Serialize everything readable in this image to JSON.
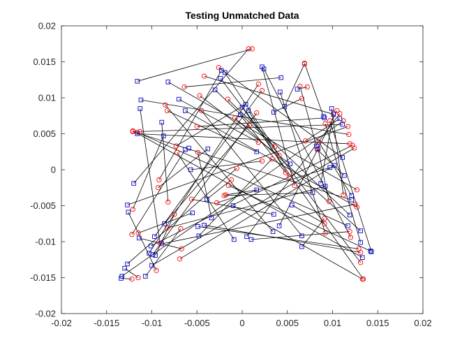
{
  "chart_data": {
    "type": "scatter",
    "title": "Testing Unmatched Data",
    "xlabel": "",
    "ylabel": "",
    "xlim": [
      -0.02,
      0.02
    ],
    "ylim": [
      -0.02,
      0.02
    ],
    "grid": false,
    "legend": "none",
    "x_ticks": [
      -0.02,
      -0.015,
      -0.01,
      -0.005,
      0,
      0.005,
      0.01,
      0.015,
      0.02
    ],
    "x_tick_labels": [
      "-0.02",
      "-0.015",
      "-0.01",
      "-0.005",
      "0",
      "0.005",
      "0.01",
      "0.015",
      "0.02"
    ],
    "y_ticks": [
      -0.02,
      -0.015,
      -0.01,
      -0.005,
      0,
      0.005,
      0.01,
      0.015,
      0.02
    ],
    "y_tick_labels": [
      "-0.02",
      "-0.015",
      "-0.01",
      "-0.005",
      "0",
      "0.005",
      "0.01",
      "0.015",
      "0.02"
    ],
    "series": [
      {
        "marker": "circle",
        "color": "#ff0000",
        "x": [
          -0.0122,
          -0.0115,
          -0.0095,
          -0.0091,
          -0.0067,
          -0.0068,
          -0.0075,
          -0.0082,
          -0.0121,
          -0.0122,
          -0.0115,
          -0.0093,
          -0.0092,
          -0.0072,
          -0.0073,
          -0.0083,
          -0.0085,
          -0.0064,
          -0.0047,
          -0.0045,
          -0.005,
          -0.0042,
          -0.0026,
          -0.0016,
          -0.0008,
          -0.0015,
          -0.0028,
          -0.002,
          -0.0018,
          -0.0012,
          -0.0006,
          0.0007,
          0.0011,
          0.0018,
          0.0022,
          0.0016,
          0.0008,
          0.0018,
          0.0022,
          0.0033,
          0.0036,
          0.0041,
          0.0048,
          0.0052,
          0.0058,
          0.0066,
          0.0069,
          0.0072,
          0.0064,
          0.0069,
          0.007,
          0.0083,
          0.0085,
          0.0092,
          0.0097,
          0.0101,
          0.0105,
          0.0108,
          0.0112,
          0.0117,
          0.0118,
          0.0119,
          0.0122,
          0.0124,
          0.0125,
          0.0127,
          0.0127,
          0.0129,
          0.0131,
          0.0131,
          0.0133,
          0.0134,
          0.0119,
          0.012,
          0.0092,
          0.0091,
          0.0091,
          0.0096,
          0.0112,
          -0.0113,
          -0.0116,
          -0.0121,
          -0.0121,
          -0.0069,
          -0.0083,
          -0.0056,
          -0.0049
        ],
        "y": [
          -0.0152,
          -0.015,
          -0.014,
          -0.0102,
          -0.011,
          -0.0082,
          -0.0062,
          -0.0045,
          -0.0055,
          -0.009,
          -0.0088,
          -0.0025,
          -0.0014,
          0.0024,
          0.0033,
          0.0082,
          0.009,
          0.0115,
          0.0103,
          0.0082,
          0.006,
          0.013,
          0.0142,
          0.0098,
          0.0072,
          -0.0022,
          -0.0046,
          -0.0036,
          -0.0035,
          -0.0014,
          0.0002,
          0.0168,
          0.0168,
          0.0119,
          0.011,
          0.0079,
          0.0062,
          0.0038,
          0.0012,
          0.0015,
          0.0032,
          0.002,
          -0.0004,
          -0.001,
          -0.0022,
          0.0099,
          0.0147,
          0.0115,
          0.0116,
          0.0148,
          0.004,
          0.0028,
          0.0038,
          0.0064,
          0.0068,
          0.0078,
          0.0082,
          0.0078,
          0.0068,
          0.006,
          0.0049,
          0.0036,
          0.0034,
          0.003,
          -0.0048,
          -0.0028,
          -0.0052,
          -0.011,
          -0.0115,
          -0.0129,
          -0.0152,
          -0.0152,
          -0.0086,
          -0.0094,
          -0.0088,
          -0.0075,
          -0.0068,
          -0.0044,
          -0.0035,
          0.0053,
          0.0052,
          0.0053,
          0.0054,
          -0.0124,
          -0.0081,
          -0.0041,
          0.0024
        ]
      },
      {
        "marker": "square",
        "color": "#0000cc",
        "x": [
          -0.0134,
          -0.0133,
          -0.013,
          -0.0127,
          -0.0126,
          -0.0127,
          -0.012,
          -0.0113,
          -0.0112,
          -0.0116,
          -0.0116,
          -0.0114,
          -0.0103,
          -0.0107,
          -0.0101,
          -0.0097,
          -0.0096,
          -0.01,
          -0.0099,
          -0.0089,
          -0.0089,
          -0.0086,
          -0.0087,
          -0.0082,
          -0.007,
          -0.0063,
          -0.0063,
          -0.0057,
          -0.0049,
          -0.0055,
          -0.0048,
          -0.0042,
          -0.0038,
          -0.003,
          -0.0024,
          -0.0023,
          -0.0019,
          -0.001,
          -0.0009,
          -0.0002,
          0.0,
          0.0004,
          0.0007,
          0.001,
          0.0016,
          0.0022,
          0.0024,
          0.0034,
          0.0035,
          0.0042,
          0.0043,
          0.0047,
          0.0055,
          0.0053,
          0.0061,
          0.0066,
          0.0066,
          0.0082,
          0.0084,
          0.0091,
          0.009,
          0.0099,
          0.0101,
          0.0108,
          0.0111,
          0.0111,
          0.0113,
          0.0117,
          0.0119,
          0.0121,
          0.0121,
          0.0131,
          0.0131,
          0.0133,
          0.0142,
          0.0143,
          0.0102,
          0.0097,
          0.0087,
          0.0092,
          0.0078,
          0.0041,
          0.0035,
          0.0016,
          0.0005,
          -0.0034,
          -0.0039,
          -0.0059
        ],
        "y": [
          -0.0151,
          -0.0148,
          -0.0137,
          -0.0131,
          -0.0059,
          -0.0049,
          -0.0019,
          0.0085,
          0.0097,
          0.0123,
          0.005,
          -0.0095,
          -0.0116,
          -0.0148,
          -0.0106,
          -0.0093,
          -0.0119,
          -0.0133,
          -0.0118,
          0.0066,
          -0.0103,
          -0.0075,
          0.0047,
          0.0122,
          0.0098,
          0.0082,
          0.0028,
          0.0,
          -0.0079,
          -0.006,
          -0.0092,
          -0.0077,
          0.0029,
          0.0111,
          0.0127,
          0.0138,
          0.0135,
          -0.005,
          -0.0097,
          0.0076,
          0.0087,
          0.0091,
          0.0082,
          -0.0097,
          0.0025,
          0.0143,
          0.014,
          -0.0086,
          0.008,
          0.0108,
          0.0128,
          0.0088,
          -0.0049,
          0.0008,
          0.0112,
          -0.0107,
          -0.0092,
          0.0033,
          0.0029,
          0.0072,
          0.0074,
          0.0085,
          0.0077,
          0.0071,
          0.0063,
          0.0017,
          -0.0008,
          -0.0078,
          -0.0063,
          -0.0036,
          -0.0042,
          -0.0085,
          -0.0101,
          -0.0122,
          -0.0113,
          -0.0114,
          0.0006,
          0.0003,
          -0.0019,
          -0.0023,
          -0.0032,
          -0.0078,
          -0.0062,
          -0.0028,
          -0.0093,
          -0.0067,
          -0.0041,
          0.003
        ]
      }
    ],
    "connecting_lines": {
      "color": "#000000",
      "pairs": [
        [
          0,
          0
        ],
        [
          1,
          2
        ],
        [
          2,
          4
        ],
        [
          3,
          7
        ],
        [
          4,
          11
        ],
        [
          5,
          13
        ],
        [
          6,
          16
        ],
        [
          7,
          19
        ],
        [
          8,
          22
        ],
        [
          9,
          26
        ],
        [
          10,
          29
        ],
        [
          11,
          32
        ],
        [
          12,
          35
        ],
        [
          13,
          38
        ],
        [
          14,
          41
        ],
        [
          15,
          44
        ],
        [
          16,
          47
        ],
        [
          17,
          50
        ],
        [
          18,
          53
        ],
        [
          19,
          56
        ],
        [
          20,
          59
        ],
        [
          21,
          62
        ],
        [
          22,
          65
        ],
        [
          23,
          68
        ],
        [
          24,
          71
        ],
        [
          25,
          74
        ],
        [
          26,
          77
        ],
        [
          27,
          80
        ],
        [
          28,
          83
        ],
        [
          29,
          86
        ],
        [
          30,
          3
        ],
        [
          31,
          6
        ],
        [
          32,
          9
        ],
        [
          33,
          12
        ],
        [
          34,
          15
        ],
        [
          35,
          18
        ],
        [
          36,
          21
        ],
        [
          37,
          24
        ],
        [
          38,
          27
        ],
        [
          39,
          30
        ],
        [
          40,
          33
        ],
        [
          41,
          36
        ],
        [
          42,
          39
        ],
        [
          43,
          42
        ],
        [
          44,
          45
        ],
        [
          45,
          48
        ],
        [
          46,
          51
        ],
        [
          47,
          54
        ],
        [
          48,
          57
        ],
        [
          49,
          60
        ],
        [
          50,
          63
        ],
        [
          51,
          66
        ],
        [
          52,
          69
        ],
        [
          53,
          72
        ],
        [
          54,
          75
        ],
        [
          55,
          78
        ],
        [
          56,
          81
        ],
        [
          57,
          84
        ],
        [
          58,
          1
        ],
        [
          59,
          5
        ],
        [
          60,
          8
        ],
        [
          61,
          10
        ],
        [
          62,
          14
        ],
        [
          63,
          17
        ],
        [
          64,
          20
        ],
        [
          65,
          23
        ],
        [
          66,
          25
        ],
        [
          67,
          28
        ],
        [
          68,
          31
        ],
        [
          69,
          34
        ],
        [
          70,
          37
        ],
        [
          71,
          40
        ],
        [
          72,
          43
        ],
        [
          73,
          46
        ],
        [
          74,
          49
        ],
        [
          75,
          52
        ],
        [
          76,
          55
        ],
        [
          77,
          58
        ],
        [
          78,
          61
        ],
        [
          79,
          64
        ],
        [
          80,
          67
        ],
        [
          81,
          70
        ],
        [
          82,
          73
        ],
        [
          83,
          76
        ],
        [
          84,
          79
        ],
        [
          85,
          82
        ],
        [
          86,
          85
        ]
      ]
    }
  }
}
